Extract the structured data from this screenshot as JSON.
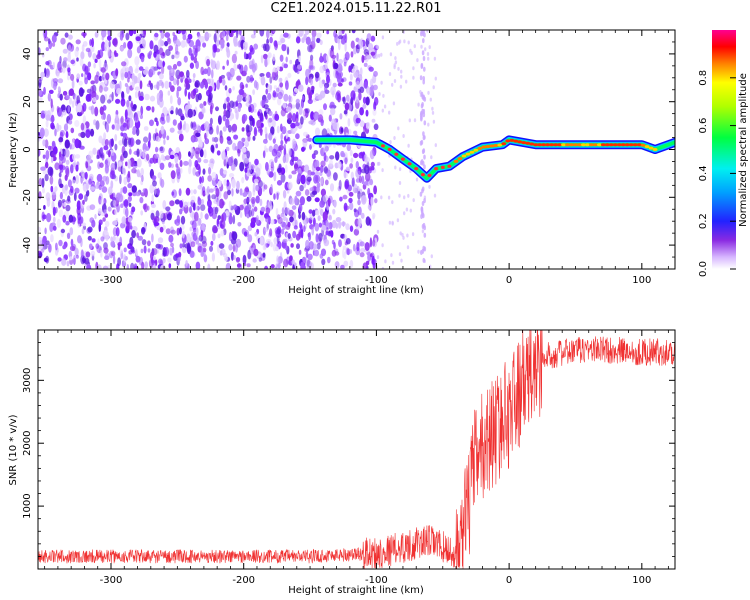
{
  "title": "C2E1.2024.015.11.22.R01",
  "colors": {
    "snr_line": "#f03232",
    "spectro_dots": "#7b1cff",
    "axis": "#000000"
  },
  "chart_data": [
    {
      "type": "heatmap",
      "xlabel": "Height of straight line (km)",
      "ylabel": "Frequency (Hz)",
      "xlim": [
        -355,
        125
      ],
      "ylim": [
        -50,
        50
      ],
      "xticks": [
        -300,
        -200,
        -100,
        0,
        100
      ],
      "yticks": [
        -40,
        -20,
        0,
        20,
        40
      ],
      "colorbar": {
        "label": "Normalized spectral amplitude",
        "range": [
          0,
          1
        ],
        "ticks": [
          "0.0",
          "0.2",
          "0.4",
          "0.6",
          "0.8"
        ],
        "colormap": "rainbow (white-purple-blue-cyan-green-yellow-red-magenta)"
      },
      "trace": {
        "description_points": [
          {
            "x": -145,
            "y": 4
          },
          {
            "x": -120,
            "y": 4
          },
          {
            "x": -100,
            "y": 3
          },
          {
            "x": -90,
            "y": 0
          },
          {
            "x": -80,
            "y": -4
          },
          {
            "x": -70,
            "y": -8
          },
          {
            "x": -62,
            "y": -12
          },
          {
            "x": -55,
            "y": -8
          },
          {
            "x": -45,
            "y": -7
          },
          {
            "x": -35,
            "y": -3
          },
          {
            "x": -20,
            "y": 1
          },
          {
            "x": -5,
            "y": 2
          },
          {
            "x": 0,
            "y": 4
          },
          {
            "x": 20,
            "y": 2
          },
          {
            "x": 60,
            "y": 2
          },
          {
            "x": 100,
            "y": 2
          },
          {
            "x": 110,
            "y": 0
          },
          {
            "x": 125,
            "y": 3
          }
        ]
      }
    },
    {
      "type": "line",
      "xlabel": "Height of straight line (km)",
      "ylabel": "SNR (10 * v/v)",
      "xlim": [
        -355,
        125
      ],
      "ylim": [
        0,
        3800
      ],
      "xticks": [
        -300,
        -200,
        -100,
        0,
        100
      ],
      "yticks": [
        1000,
        2000,
        3000
      ],
      "envelope": [
        {
          "x": -355,
          "y": 200
        },
        {
          "x": -250,
          "y": 200
        },
        {
          "x": -150,
          "y": 200
        },
        {
          "x": -100,
          "y": 250
        },
        {
          "x": -80,
          "y": 350
        },
        {
          "x": -60,
          "y": 450
        },
        {
          "x": -45,
          "y": 300
        },
        {
          "x": -40,
          "y": 100
        },
        {
          "x": -35,
          "y": 500
        },
        {
          "x": -30,
          "y": 1100
        },
        {
          "x": -25,
          "y": 1800
        },
        {
          "x": -15,
          "y": 2100
        },
        {
          "x": 0,
          "y": 2500
        },
        {
          "x": 10,
          "y": 2900
        },
        {
          "x": 20,
          "y": 3200
        },
        {
          "x": 30,
          "y": 3400
        },
        {
          "x": 60,
          "y": 3500
        },
        {
          "x": 100,
          "y": 3450
        },
        {
          "x": 125,
          "y": 3450
        }
      ]
    }
  ]
}
